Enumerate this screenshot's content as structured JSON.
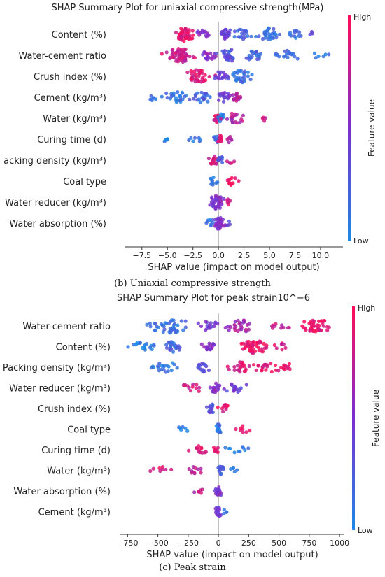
{
  "captions": {
    "b": "(b) Uniaxial compressive strength",
    "c": "(c) Peak strain"
  },
  "colors": {
    "low": "#1e88e5",
    "mid": "#7b2fd0",
    "high": "#ff0d57"
  },
  "chart_data": [
    {
      "type": "scatter",
      "subtype": "shap-beeswarm",
      "title": "SHAP Summary Plot for uniaxial compressive strength(MPa)",
      "xlabel": "SHAP value (impact on model output)",
      "colorbar_label": "Feature value",
      "colorbar_high": "High",
      "colorbar_low": "Low",
      "xlim": [
        -9.2,
        12.2
      ],
      "xticks": [
        -7.5,
        -5.0,
        -2.5,
        0.0,
        2.5,
        5.0,
        7.5,
        10.0
      ],
      "xtick_labels": [
        "−7.5",
        "−5.0",
        "−2.5",
        "0.0",
        "2.5",
        "5.0",
        "7.5",
        "10.0"
      ],
      "features": [
        "Content (%)",
        "Water-cement ratio",
        "Crush index (%)",
        "Cement (kg/m³)",
        "Water (kg/m³)",
        "Curing time (d)",
        "acking density (kg/m³)",
        "Coal type",
        "Water reducer (kg/m³)",
        "Water absorption (%)"
      ],
      "distributions": [
        {
          "clusters": [
            {
              "c": -3.3,
              "s": 0.8,
              "n": 50,
              "v": 0.9
            },
            {
              "c": -1.5,
              "s": 0.5,
              "n": 14,
              "v": 0.55
            },
            {
              "c": 0.8,
              "s": 0.5,
              "n": 24,
              "v": 0.4
            },
            {
              "c": 2.3,
              "s": 0.6,
              "n": 20,
              "v": 0.2
            },
            {
              "c": 5.0,
              "s": 0.9,
              "n": 32,
              "v": 0.15
            },
            {
              "c": 7.5,
              "s": 0.7,
              "n": 12,
              "v": 0.15
            },
            {
              "c": 9.0,
              "s": 0.2,
              "n": 3,
              "v": 0.4
            }
          ]
        },
        {
          "clusters": [
            {
              "c": -3.8,
              "s": 1.0,
              "n": 55,
              "v": 0.8
            },
            {
              "c": -1.0,
              "s": 0.6,
              "n": 18,
              "v": 0.55
            },
            {
              "c": 1.0,
              "s": 0.7,
              "n": 28,
              "v": 0.3
            },
            {
              "c": 3.5,
              "s": 0.7,
              "n": 20,
              "v": 0.2
            },
            {
              "c": 6.8,
              "s": 1.0,
              "n": 18,
              "v": 0.15
            },
            {
              "c": 10.0,
              "s": 0.8,
              "n": 6,
              "v": 0.1
            }
          ]
        },
        {
          "clusters": [
            {
              "c": -2.0,
              "s": 0.9,
              "n": 36,
              "v": 0.88
            },
            {
              "c": 0.3,
              "s": 0.6,
              "n": 18,
              "v": 0.4
            },
            {
              "c": 2.2,
              "s": 0.7,
              "n": 30,
              "v": 0.15
            }
          ]
        },
        {
          "clusters": [
            {
              "c": -6.5,
              "s": 0.6,
              "n": 6,
              "v": 0.1
            },
            {
              "c": -4.0,
              "s": 1.0,
              "n": 26,
              "v": 0.12
            },
            {
              "c": -1.5,
              "s": 0.8,
              "n": 24,
              "v": 0.2
            },
            {
              "c": 0.6,
              "s": 0.5,
              "n": 18,
              "v": 0.45
            },
            {
              "c": 1.8,
              "s": 0.4,
              "n": 18,
              "v": 0.7
            }
          ]
        },
        {
          "clusters": [
            {
              "c": -0.2,
              "s": 0.2,
              "n": 14,
              "v": 0.85
            },
            {
              "c": 0.3,
              "s": 0.3,
              "n": 14,
              "v": 0.1
            },
            {
              "c": 1.5,
              "s": 1.0,
              "n": 20,
              "v": 0.7
            },
            {
              "c": 4.5,
              "s": 0.2,
              "n": 4,
              "v": 0.85
            }
          ]
        },
        {
          "clusters": [
            {
              "c": -5.0,
              "s": 0.4,
              "n": 5,
              "v": 0.05
            },
            {
              "c": -2.3,
              "s": 0.6,
              "n": 7,
              "v": 0.1
            },
            {
              "c": -0.2,
              "s": 0.2,
              "n": 10,
              "v": 0.1
            },
            {
              "c": 0.2,
              "s": 0.2,
              "n": 12,
              "v": 0.9
            },
            {
              "c": 1.1,
              "s": 0.3,
              "n": 6,
              "v": 0.75
            }
          ]
        },
        {
          "clusters": [
            {
              "c": -0.5,
              "s": 0.35,
              "n": 18,
              "v": 0.85
            },
            {
              "c": 0.2,
              "s": 0.3,
              "n": 12,
              "v": 0.25
            },
            {
              "c": 1.2,
              "s": 0.3,
              "n": 5,
              "v": 0.75
            }
          ]
        },
        {
          "clusters": [
            {
              "c": -0.5,
              "s": 0.3,
              "n": 10,
              "v": 0.1
            },
            {
              "c": 1.3,
              "s": 0.5,
              "n": 12,
              "v": 0.92
            }
          ]
        },
        {
          "clusters": [
            {
              "c": -0.2,
              "s": 0.5,
              "n": 40,
              "v": 0.5
            },
            {
              "c": 0.9,
              "s": 0.3,
              "n": 6,
              "v": 0.85
            }
          ]
        },
        {
          "clusters": [
            {
              "c": -0.8,
              "s": 0.3,
              "n": 8,
              "v": 0.1
            },
            {
              "c": 0.1,
              "s": 0.35,
              "n": 32,
              "v": 0.5
            },
            {
              "c": 0.9,
              "s": 0.2,
              "n": 4,
              "v": 0.4
            }
          ]
        }
      ]
    },
    {
      "type": "scatter",
      "subtype": "shap-beeswarm",
      "title": "SHAP Summary Plot for peak strain10^−6",
      "xlabel": "SHAP value (impact on model output)",
      "colorbar_label": "Feature value",
      "colorbar_high": "High",
      "colorbar_low": "Low",
      "xlim": [
        -810,
        1040
      ],
      "xticks": [
        -750,
        -500,
        -250,
        0,
        250,
        500,
        750,
        1000
      ],
      "xtick_labels": [
        "−750",
        "−500",
        "−250",
        "0",
        "250",
        "500",
        "750",
        "1000"
      ],
      "features": [
        "Water-cement ratio",
        "Content (%)",
        "Packing density (kg/m³)",
        "Water reducer (kg/m³)",
        "Crush index (%)",
        "Coal type",
        "Curing time (d)",
        "Water (kg/m³)",
        "Water absorption (%)",
        "Cement (kg/m³)"
      ],
      "distributions": [
        {
          "clusters": [
            {
              "c": -400,
              "s": 130,
              "n": 40,
              "v": 0.15
            },
            {
              "c": -90,
              "s": 80,
              "n": 16,
              "v": 0.45
            },
            {
              "c": 200,
              "s": 120,
              "n": 26,
              "v": 0.65
            },
            {
              "c": 500,
              "s": 70,
              "n": 10,
              "v": 0.8
            },
            {
              "c": 800,
              "s": 90,
              "n": 40,
              "v": 0.92
            }
          ]
        },
        {
          "clusters": [
            {
              "c": -600,
              "s": 90,
              "n": 18,
              "v": 0.08
            },
            {
              "c": -380,
              "s": 70,
              "n": 24,
              "v": 0.2
            },
            {
              "c": -70,
              "s": 60,
              "n": 18,
              "v": 0.55
            },
            {
              "c": 290,
              "s": 90,
              "n": 46,
              "v": 0.92
            },
            {
              "c": 520,
              "s": 50,
              "n": 8,
              "v": 0.85
            }
          ]
        },
        {
          "clusters": [
            {
              "c": -440,
              "s": 100,
              "n": 20,
              "v": 0.1
            },
            {
              "c": -120,
              "s": 40,
              "n": 18,
              "v": 0.3
            },
            {
              "c": 170,
              "s": 70,
              "n": 22,
              "v": 0.85
            },
            {
              "c": 400,
              "s": 90,
              "n": 20,
              "v": 0.9
            },
            {
              "c": 560,
              "s": 50,
              "n": 10,
              "v": 0.95
            }
          ]
        },
        {
          "clusters": [
            {
              "c": -220,
              "s": 90,
              "n": 12,
              "v": 0.8
            },
            {
              "c": -20,
              "s": 40,
              "n": 18,
              "v": 0.55
            },
            {
              "c": 150,
              "s": 90,
              "n": 18,
              "v": 0.4
            }
          ]
        },
        {
          "clusters": [
            {
              "c": -60,
              "s": 30,
              "n": 16,
              "v": 0.3
            },
            {
              "c": 50,
              "s": 30,
              "n": 14,
              "v": 0.9
            }
          ]
        },
        {
          "clusters": [
            {
              "c": -300,
              "s": 40,
              "n": 6,
              "v": 0.05
            },
            {
              "c": 0,
              "s": 20,
              "n": 20,
              "v": 0.1
            },
            {
              "c": 200,
              "s": 60,
              "n": 8,
              "v": 0.95
            }
          ]
        },
        {
          "clusters": [
            {
              "c": -150,
              "s": 70,
              "n": 12,
              "v": 0.9
            },
            {
              "c": -20,
              "s": 20,
              "n": 8,
              "v": 0.85
            },
            {
              "c": 150,
              "s": 70,
              "n": 10,
              "v": 0.1
            }
          ]
        },
        {
          "clusters": [
            {
              "c": -450,
              "s": 70,
              "n": 8,
              "v": 0.9
            },
            {
              "c": -180,
              "s": 60,
              "n": 10,
              "v": 0.75
            },
            {
              "c": 20,
              "s": 20,
              "n": 14,
              "v": 0.25
            },
            {
              "c": 130,
              "s": 30,
              "n": 5,
              "v": 0.1
            }
          ]
        },
        {
          "clusters": [
            {
              "c": -140,
              "s": 50,
              "n": 6,
              "v": 0.75
            },
            {
              "c": 0,
              "s": 25,
              "n": 22,
              "v": 0.5
            }
          ]
        },
        {
          "clusters": [
            {
              "c": 0,
              "s": 25,
              "n": 18,
              "v": 0.45
            },
            {
              "c": 60,
              "s": 20,
              "n": 4,
              "v": 0.2
            }
          ]
        }
      ]
    }
  ]
}
